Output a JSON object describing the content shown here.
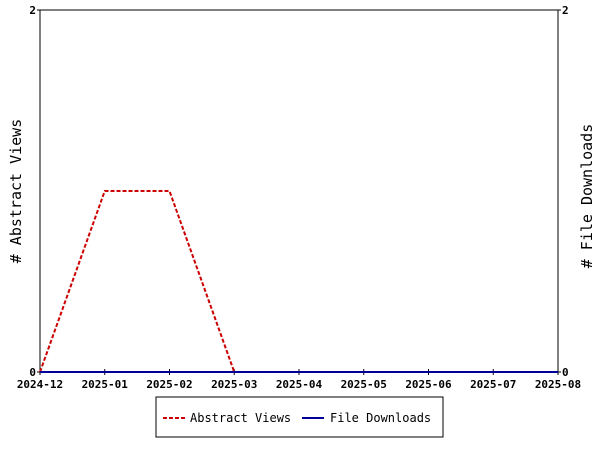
{
  "chart_data": {
    "type": "line",
    "categories": [
      "2024-12",
      "2025-01",
      "2025-02",
      "2025-03",
      "2025-04",
      "2025-05",
      "2025-06",
      "2025-07",
      "2025-08"
    ],
    "series": [
      {
        "name": "Abstract Views",
        "axis": "left",
        "color": "#cc0000",
        "style": "dashed",
        "values": [
          0,
          1,
          1,
          0,
          0,
          0,
          0,
          0,
          0
        ]
      },
      {
        "name": "File Downloads",
        "axis": "right",
        "color": "#000099",
        "style": "solid",
        "values": [
          0,
          0,
          0,
          0,
          0,
          0,
          0,
          0,
          0
        ]
      }
    ],
    "y_left": {
      "label": "# Abstract Views",
      "ylim": [
        0,
        2
      ],
      "ticks": [
        "0",
        "2"
      ]
    },
    "y_right": {
      "label": "# File Downloads",
      "ylim": [
        0,
        2
      ],
      "ticks": [
        "0",
        "2"
      ]
    },
    "title": "",
    "xlabel": "",
    "grid": false,
    "legend_position": "bottom-center"
  }
}
